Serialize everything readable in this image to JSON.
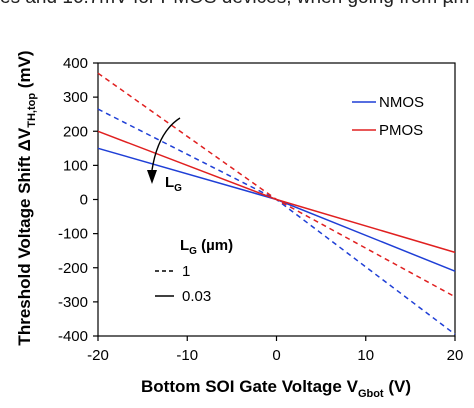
{
  "caption_fragment": "es and 16.7mV for PMOS devices, when going from µm",
  "chart_data": {
    "type": "line",
    "xlabel_main": "Bottom SOI Gate Voltage V",
    "xlabel_sub": "Gbot",
    "xlabel_unit": " (V)",
    "ylabel_main": "Threshold Voltage Shift ΔV",
    "ylabel_sub": "TH,top",
    "ylabel_unit": " (mV)",
    "xlim": [
      -20,
      20
    ],
    "ylim": [
      -400,
      400
    ],
    "xticks": [
      "-20",
      "-10",
      "0",
      "10",
      "20"
    ],
    "yticks": [
      "-400",
      "-300",
      "-200",
      "-100",
      "0",
      "100",
      "200",
      "300",
      "400"
    ],
    "legend_color": [
      {
        "label": "NMOS",
        "color": "#1f3fd6"
      },
      {
        "label": "PMOS",
        "color": "#e02020"
      }
    ],
    "legend_style_title_main": "L",
    "legend_style_title_sub": "G",
    "legend_style_title_unit": " (µm)",
    "legend_style": [
      {
        "label": "1",
        "dash": "dashed"
      },
      {
        "label": "0.03",
        "dash": "solid"
      }
    ],
    "arrow_label_main": "L",
    "arrow_label_sub": "G",
    "series": [
      {
        "name": "NMOS",
        "group": "1",
        "color": "#1f3fd6",
        "dash": "dashed",
        "x": [
          -20,
          0,
          20
        ],
        "y": [
          265,
          0,
          -395
        ]
      },
      {
        "name": "NMOS",
        "group": "0.03",
        "color": "#1f3fd6",
        "dash": "solid",
        "x": [
          -20,
          0,
          20
        ],
        "y": [
          150,
          0,
          -210
        ]
      },
      {
        "name": "PMOS",
        "group": "1",
        "color": "#e02020",
        "dash": "dashed",
        "x": [
          -20,
          0,
          20
        ],
        "y": [
          370,
          0,
          -285
        ]
      },
      {
        "name": "PMOS",
        "group": "0.03",
        "color": "#e02020",
        "dash": "solid",
        "x": [
          -20,
          0,
          20
        ],
        "y": [
          200,
          0,
          -155
        ]
      }
    ]
  }
}
